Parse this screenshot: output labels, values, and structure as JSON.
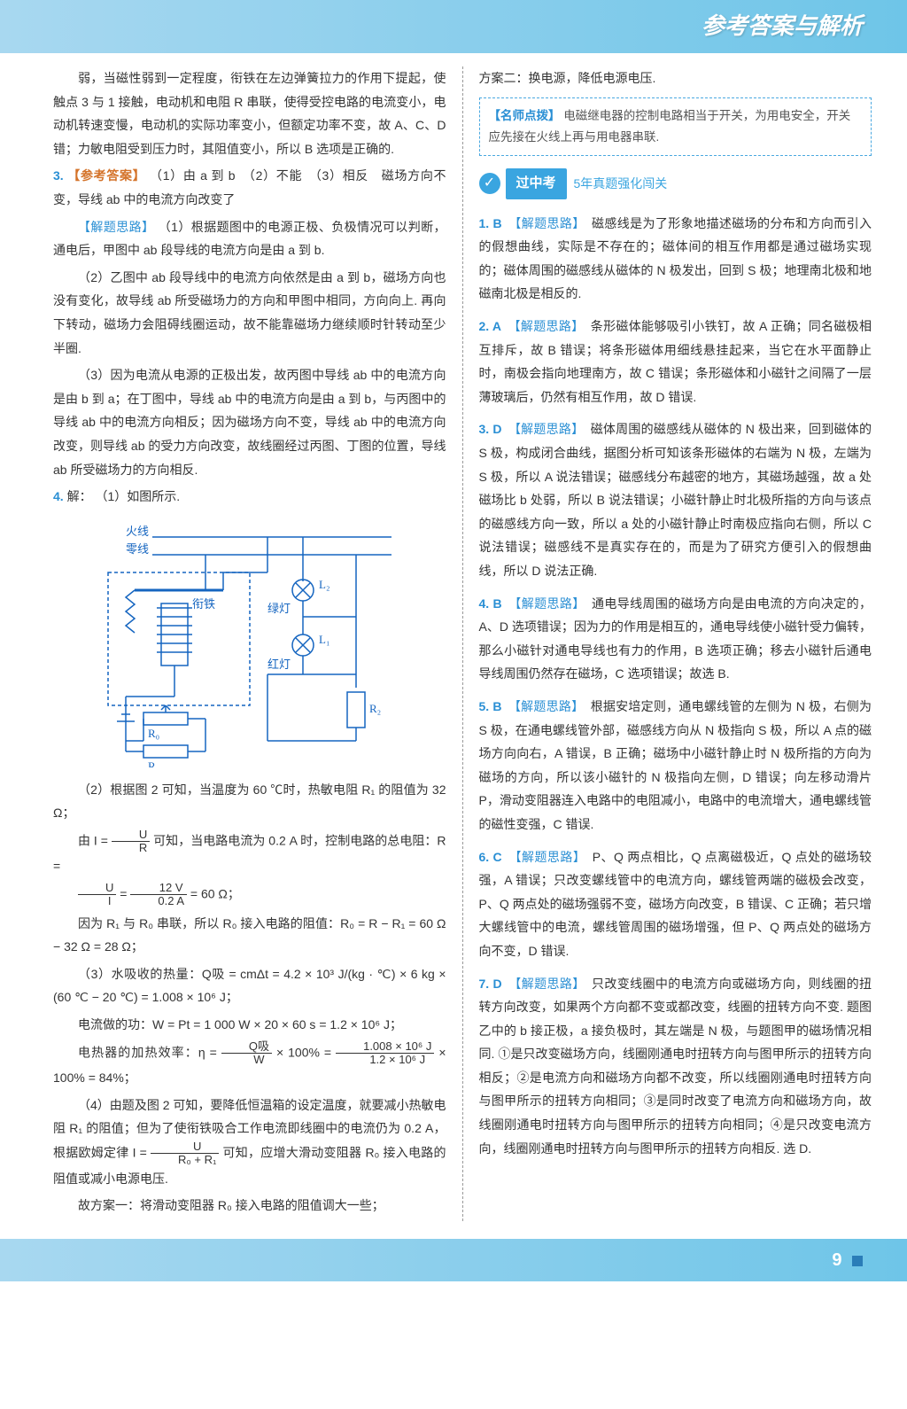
{
  "header": {
    "title": "参考答案与解析"
  },
  "footer": {
    "page": "9"
  },
  "left": {
    "p1": "弱，当磁性弱到一定程度，衔铁在左边弹簧拉力的作用下提起，使触点 3 与 1 接触，电动机和电阻 R 串联，使得受控电路的电流变小，电动机转速变慢，电动机的实际功率变小，但额定功率不变，故 A、C、D 错；力敏电阻受到压力时，其阻值变小，所以 B 选项是正确的.",
    "q3_ans_label": "【参考答案】",
    "q3_ans": "（1）由 a 到 b　（2）不能　（3）相反　磁场方向不变，导线 ab 中的电流方向改变了",
    "q3_sol_label": "【解题思路】",
    "q3_sol1": "（1）根据题图中的电源正极、负极情况可以判断，通电后，甲图中 ab 段导线的电流方向是由 a 到 b.",
    "q3_sol2": "（2）乙图中 ab 段导线中的电流方向依然是由 a 到 b，磁场方向也没有变化，故导线 ab 所受磁场力的方向和甲图中相同，方向向上. 再向下转动，磁场力会阻碍线圈运动，故不能靠磁场力继续顺时针转动至少半圈.",
    "q3_sol3": "（3）因为电流从电源的正极出发，故丙图中导线 ab 中的电流方向是由 b 到 a；在丁图中，导线 ab 中的电流方向是由 a 到 b，与丙图中的导线 ab 中的电流方向相反；因为磁场方向不变，导线 ab 中的电流方向改变，则导线 ab 的受力方向改变，故线圈经过丙图、丁图的位置，导线 ab 所受磁场力的方向相反.",
    "q4_label": "解：",
    "q4_1": "（1）如图所示.",
    "circuit": {
      "huoxian": "火线",
      "lingxian": "零线",
      "xiantie": "衔铁",
      "lvdeng": "绿灯",
      "hongdeng": "红灯",
      "L1": "L₁",
      "L2": "L₂",
      "R0": "R₀",
      "R1": "R₁",
      "R2": "R₂",
      "stroke": "#1565c0"
    },
    "q4_2a": "（2）根据图 2 可知，当温度为 60 ℃时，热敏电阻 R₁ 的阻值为 32 Ω；",
    "q4_2b": "可知，当电路电流为 0.2 A 时，控制电路的总电阻：R =",
    "q4_2c": "= 60 Ω；",
    "q4_2d": "因为 R₁ 与 R₀ 串联，所以 R₀ 接入电路的阻值：R₀ = R − R₁ = 60 Ω − 32 Ω = 28 Ω；",
    "q4_3a": "（3）水吸收的热量：Q吸 = cmΔt = 4.2 × 10³ J/(kg · ℃) × 6 kg × (60 ℃ − 20 ℃) = 1.008 × 10⁶ J；",
    "q4_3b": "电流做的功：W = Pt = 1 000 W × 20 × 60 s = 1.2 × 10⁶ J；",
    "q4_3c": "电热器的加热效率：η =",
    "q4_3d": "× 100% =",
    "q4_3e": "× 100% = 84%；",
    "q4_4a": "（4）由题及图 2 可知，要降低恒温箱的设定温度，就要减小热敏电阻 R₁ 的阻值；但为了使衔铁吸合工作电流即线圈中的电流仍为 0.2 A，根据欧姆定律 I =",
    "q4_4b": "可知，应增大滑动变阻器 R₀ 接入电路的阻值或减小电源电压.",
    "q4_4c": "故方案一：将滑动变阻器 R₀ 接入电路的阻值调大一些；",
    "formula": {
      "I_eq_UR": {
        "top": "U",
        "bot": "R",
        "pre": "由 I ="
      },
      "UI": {
        "top": "U",
        "bot": "I"
      },
      "UI_val": {
        "top": "12 V",
        "bot": "0.2 A"
      },
      "QW": {
        "top": "Q吸",
        "bot": "W"
      },
      "QW_val": {
        "top": "1.008 × 10⁶ J",
        "bot": "1.2 × 10⁶ J"
      },
      "ohm": {
        "top": "U",
        "bot": "R₀ + R₁"
      }
    }
  },
  "right": {
    "p0": "方案二：换电源，降低电源电压.",
    "tip_label": "【名师点拨】",
    "tip": "电磁继电器的控制电路相当于开关，为用电安全，开关应先接在火线上再与用电器串联.",
    "section": {
      "title": "过中考",
      "sub": "5年真题强化闯关"
    },
    "items": [
      {
        "n": "1",
        "k": "B",
        "label": "【解题思路】",
        "t": "磁感线是为了形象地描述磁场的分布和方向而引入的假想曲线，实际是不存在的；磁体间的相互作用都是通过磁场实现的；磁体周围的磁感线从磁体的 N 极发出，回到 S 极；地理南北极和地磁南北极是相反的."
      },
      {
        "n": "2",
        "k": "A",
        "label": "【解题思路】",
        "t": "条形磁体能够吸引小铁钉，故 A 正确；同名磁极相互排斥，故 B 错误；将条形磁体用细线悬挂起来，当它在水平面静止时，南极会指向地理南方，故 C 错误；条形磁体和小磁针之间隔了一层薄玻璃后，仍然有相互作用，故 D 错误."
      },
      {
        "n": "3",
        "k": "D",
        "label": "【解题思路】",
        "t": "磁体周围的磁感线从磁体的 N 极出来，回到磁体的 S 极，构成闭合曲线，据图分析可知该条形磁体的右端为 N 极，左端为 S 极，所以 A 说法错误；磁感线分布越密的地方，其磁场越强，故 a 处磁场比 b 处弱，所以 B 说法错误；小磁针静止时北极所指的方向与该点的磁感线方向一致，所以 a 处的小磁针静止时南极应指向右侧，所以 C 说法错误；磁感线不是真实存在的，而是为了研究方便引入的假想曲线，所以 D 说法正确."
      },
      {
        "n": "4",
        "k": "B",
        "label": "【解题思路】",
        "t": "通电导线周围的磁场方向是由电流的方向决定的，A、D 选项错误；因为力的作用是相互的，通电导线使小磁针受力偏转，那么小磁针对通电导线也有力的作用，B 选项正确；移去小磁针后通电导线周围仍然存在磁场，C 选项错误；故选 B."
      },
      {
        "n": "5",
        "k": "B",
        "label": "【解题思路】",
        "t": "根据安培定则，通电螺线管的左侧为 N 极，右侧为 S 极，在通电螺线管外部，磁感线方向从 N 极指向 S 极，所以 A 点的磁场方向向右，A 错误，B 正确；磁场中小磁针静止时 N 极所指的方向为磁场的方向，所以该小磁针的 N 极指向左侧，D 错误；向左移动滑片 P，滑动变阻器连入电路中的电阻减小，电路中的电流增大，通电螺线管的磁性变强，C 错误."
      },
      {
        "n": "6",
        "k": "C",
        "label": "【解题思路】",
        "t": "P、Q 两点相比，Q 点离磁极近，Q 点处的磁场较强，A 错误；只改变螺线管中的电流方向，螺线管两端的磁极会改变，P、Q 两点处的磁场强弱不变，磁场方向改变，B 错误、C 正确；若只增大螺线管中的电流，螺线管周围的磁场增强，但 P、Q 两点处的磁场方向不变，D 错误."
      },
      {
        "n": "7",
        "k": "D",
        "label": "【解题思路】",
        "t": "只改变线圈中的电流方向或磁场方向，则线圈的扭转方向改变，如果两个方向都不变或都改变，线圈的扭转方向不变. 题图乙中的 b 接正极，a 接负极时，其左端是 N 极，与题图甲的磁场情况相同. ①是只改变磁场方向，线圈刚通电时扭转方向与图甲所示的扭转方向相反；②是电流方向和磁场方向都不改变，所以线圈刚通电时扭转方向与图甲所示的扭转方向相同；③是同时改变了电流方向和磁场方向，故线圈刚通电时扭转方向与图甲所示的扭转方向相同；④是只改变电流方向，线圈刚通电时扭转方向与图甲所示的扭转方向相反. 选 D."
      }
    ]
  }
}
